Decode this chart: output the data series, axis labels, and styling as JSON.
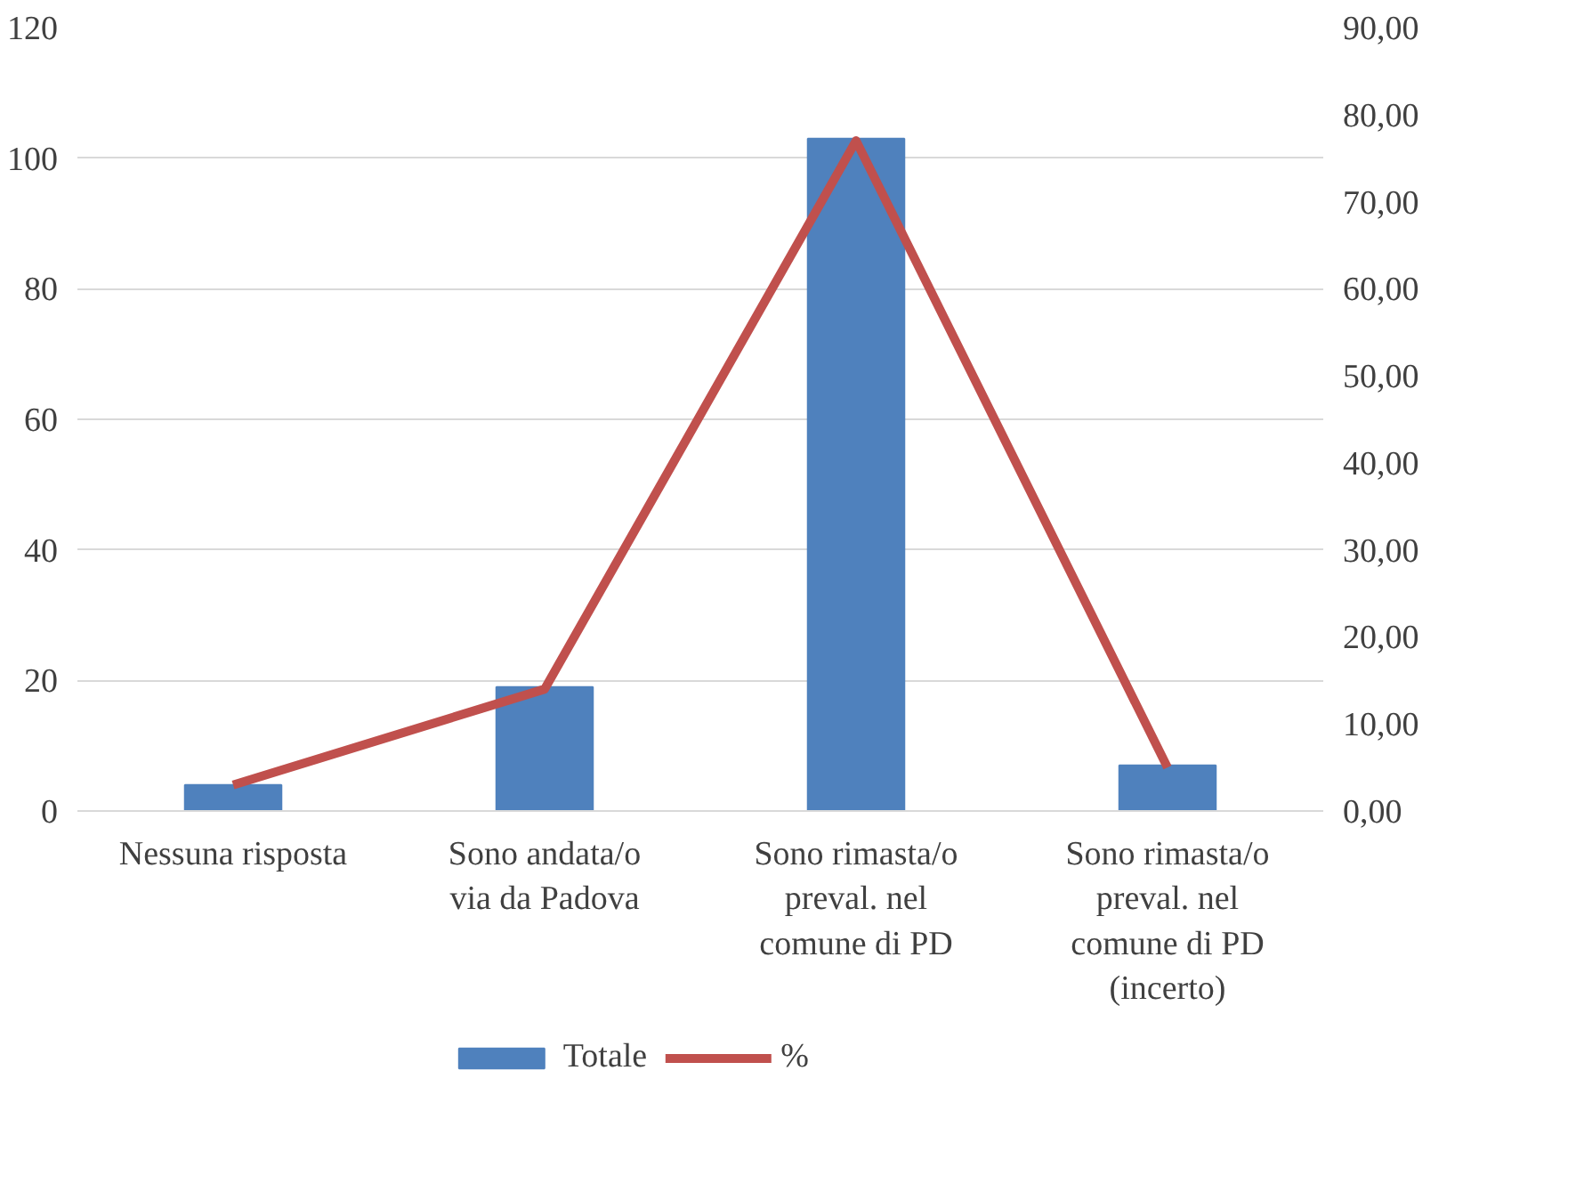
{
  "chart_data": {
    "type": "bar",
    "categories": [
      "Nessuna risposta",
      "Sono andata/o via da Padova",
      "Sono rimasta/o preval. nel comune di PD",
      "Sono rimasta/o preval. nel comune di PD (incerto)"
    ],
    "series": [
      {
        "name": "Totale",
        "color": "#4f81bd",
        "values": [
          4,
          19,
          103,
          7
        ]
      },
      {
        "name": "%",
        "type": "line",
        "axis": "y2",
        "color": "#c0504d",
        "values": [
          3,
          14,
          77,
          5
        ]
      }
    ],
    "ylim": [
      0,
      120
    ],
    "yticks": [
      0,
      20,
      40,
      60,
      80,
      100,
      120
    ],
    "y2lim": [
      0,
      90
    ],
    "y2ticks": [
      {
        "value": 0,
        "label": "0,00"
      },
      {
        "value": 10,
        "label": "10,00"
      },
      {
        "value": 20,
        "label": "20,00"
      },
      {
        "value": 30,
        "label": "30,00"
      },
      {
        "value": 40,
        "label": "40,00"
      },
      {
        "value": 50,
        "label": "50,00"
      },
      {
        "value": 60,
        "label": "60,00"
      },
      {
        "value": 70,
        "label": "70,00"
      },
      {
        "value": 80,
        "label": "80,00"
      },
      {
        "value": 90,
        "label": "90,00"
      }
    ],
    "grid": "y",
    "legend": "bottom",
    "line_style": "solid",
    "marker": "none"
  }
}
